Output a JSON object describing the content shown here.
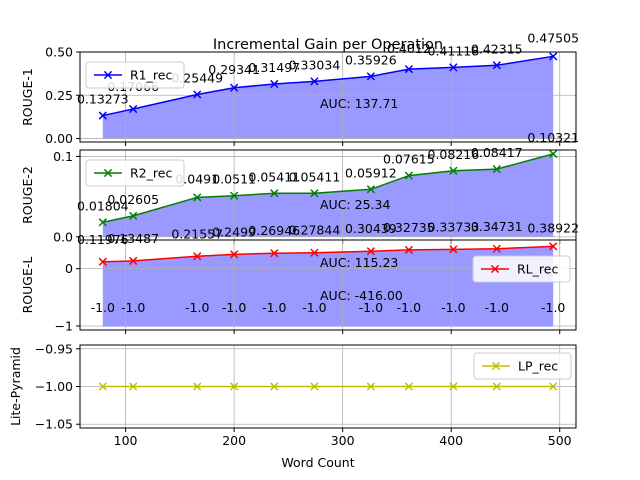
{
  "chart_data": [
    {
      "type": "line",
      "title": "Incremental Gain per Operation",
      "ylabel": "ROUGE-1",
      "ylim": [
        -0.02,
        0.5
      ],
      "yticks": [
        0.0,
        0.25,
        0.5
      ],
      "ytick_labels": [
        "0.00",
        "0.25",
        "0.50"
      ],
      "x": [
        79,
        107,
        166,
        200,
        237,
        274,
        326,
        361,
        402,
        442,
        494
      ],
      "series": [
        {
          "name": "R1_rec",
          "color": "#0000ff",
          "values": [
            0.13273,
            0.17066,
            0.25449,
            0.29341,
            0.31497,
            0.33034,
            0.35926,
            0.4012,
            0.41118,
            0.42315,
            0.47505
          ],
          "labels": [
            "0.13273",
            "0.17066",
            "0.25449",
            "0.29341",
            "0.31497",
            "0.33034",
            "0.35926",
            "0.4012",
            "0.41118",
            "0.42315",
            "0.47505"
          ]
        }
      ],
      "fill_color": "#9999ff",
      "auc_label": "AUC: 137.71",
      "legend": "top-left",
      "grid": true
    },
    {
      "type": "line",
      "ylabel": "ROUGE-2",
      "ylim": [
        -0.004,
        0.108
      ],
      "yticks": [
        0.0,
        0.1
      ],
      "ytick_labels": [
        "0.0",
        "0.1"
      ],
      "x": [
        79,
        107,
        166,
        200,
        237,
        274,
        326,
        361,
        402,
        442,
        494
      ],
      "series": [
        {
          "name": "R2_rec",
          "color": "#008000",
          "values": [
            0.01804,
            0.02605,
            0.0491,
            0.0511,
            0.05411,
            0.05411,
            0.05912,
            0.07615,
            0.08216,
            0.08417,
            0.10321
          ],
          "labels": [
            "0.01804",
            "0.02605",
            "0.0491",
            "0.0511",
            "0.05411",
            "0.05411",
            "0.05912",
            "0.07615",
            "0.08216",
            "0.08417",
            "0.10321"
          ]
        }
      ],
      "fill_color": "#9999ff",
      "auc_label": "AUC: 25.34",
      "legend": "top-left",
      "grid": true
    },
    {
      "type": "line",
      "ylabel": "ROUGE-L",
      "ylim": [
        -1.07,
        0.5
      ],
      "yticks": [
        -1,
        0
      ],
      "ytick_labels": [
        "−1",
        "0"
      ],
      "x": [
        79,
        107,
        166,
        200,
        237,
        274,
        326,
        361,
        402,
        442,
        494
      ],
      "series": [
        {
          "name": "RL_rec",
          "color": "#ff0000",
          "values": [
            0.11976,
            0.13487,
            0.21557,
            0.2499,
            0.26946,
            0.27844,
            0.30439,
            0.32735,
            0.33733,
            0.34731,
            0.38922
          ],
          "labels": [
            "0.11976",
            "0.13487",
            "0.21557",
            "0.2499",
            "0.26946",
            "0.27844",
            "0.30439",
            "0.32735",
            "0.33733",
            "0.34731",
            "0.38922"
          ]
        }
      ],
      "baseline_values": [
        -1.0,
        -1.0,
        -1.0,
        -1.0,
        -1.0,
        -1.0,
        -1.0,
        -1.0,
        -1.0,
        -1.0,
        -1.0
      ],
      "baseline_labels": [
        "-1.0",
        "-1.0",
        "-1.0",
        "-1.0",
        "-1.0",
        "-1.0",
        "-1.0",
        "-1.0",
        "-1.0",
        "-1.0",
        "-1.0"
      ],
      "fill_color": "#9999ff",
      "auc_labels": [
        "AUC: 115.23",
        "AUC: -416.00"
      ],
      "legend": "right",
      "grid": true
    },
    {
      "type": "line",
      "ylabel": "Lite-Pyramid",
      "xlabel": "Word Count",
      "ylim": [
        -1.055,
        -0.945
      ],
      "yticks": [
        -1.05,
        -1.0,
        -0.95
      ],
      "ytick_labels": [
        "−1.05",
        "−1.00",
        "−0.95"
      ],
      "x": [
        79,
        107,
        166,
        200,
        237,
        274,
        326,
        361,
        402,
        442,
        494
      ],
      "xlim": [
        58,
        515
      ],
      "xticks": [
        100,
        200,
        300,
        400,
        500
      ],
      "xtick_labels": [
        "100",
        "200",
        "300",
        "400",
        "500"
      ],
      "series": [
        {
          "name": "LP_rec",
          "color": "#bfbf00",
          "values": [
            -1.0,
            -1.0,
            -1.0,
            -1.0,
            -1.0,
            -1.0,
            -1.0,
            -1.0,
            -1.0,
            -1.0,
            -1.0
          ]
        }
      ],
      "legend": "top-right",
      "grid": true
    }
  ]
}
